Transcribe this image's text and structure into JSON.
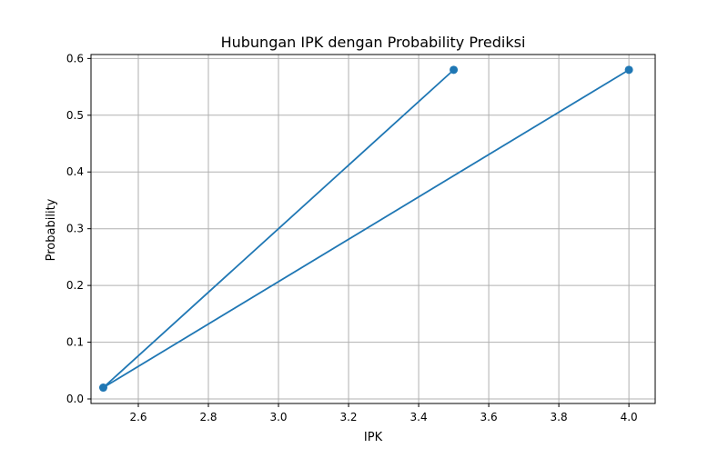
{
  "chart_data": {
    "type": "line",
    "title": "Hubungan IPK dengan Probability Prediksi",
    "xlabel": "IPK",
    "ylabel": "Probability",
    "xlim": [
      2.465,
      4.075
    ],
    "ylim": [
      -0.008,
      0.607
    ],
    "xticks": [
      2.6,
      2.8,
      3.0,
      3.2,
      3.4,
      3.6,
      3.8,
      4.0
    ],
    "yticks": [
      0.0,
      0.1,
      0.2,
      0.3,
      0.4,
      0.5,
      0.6
    ],
    "grid": true,
    "series": [
      {
        "x": [
          3.5,
          2.5,
          4.0
        ],
        "y": [
          0.58,
          0.02,
          0.58
        ],
        "color": "#1f77b4",
        "marker": "circle"
      }
    ]
  }
}
